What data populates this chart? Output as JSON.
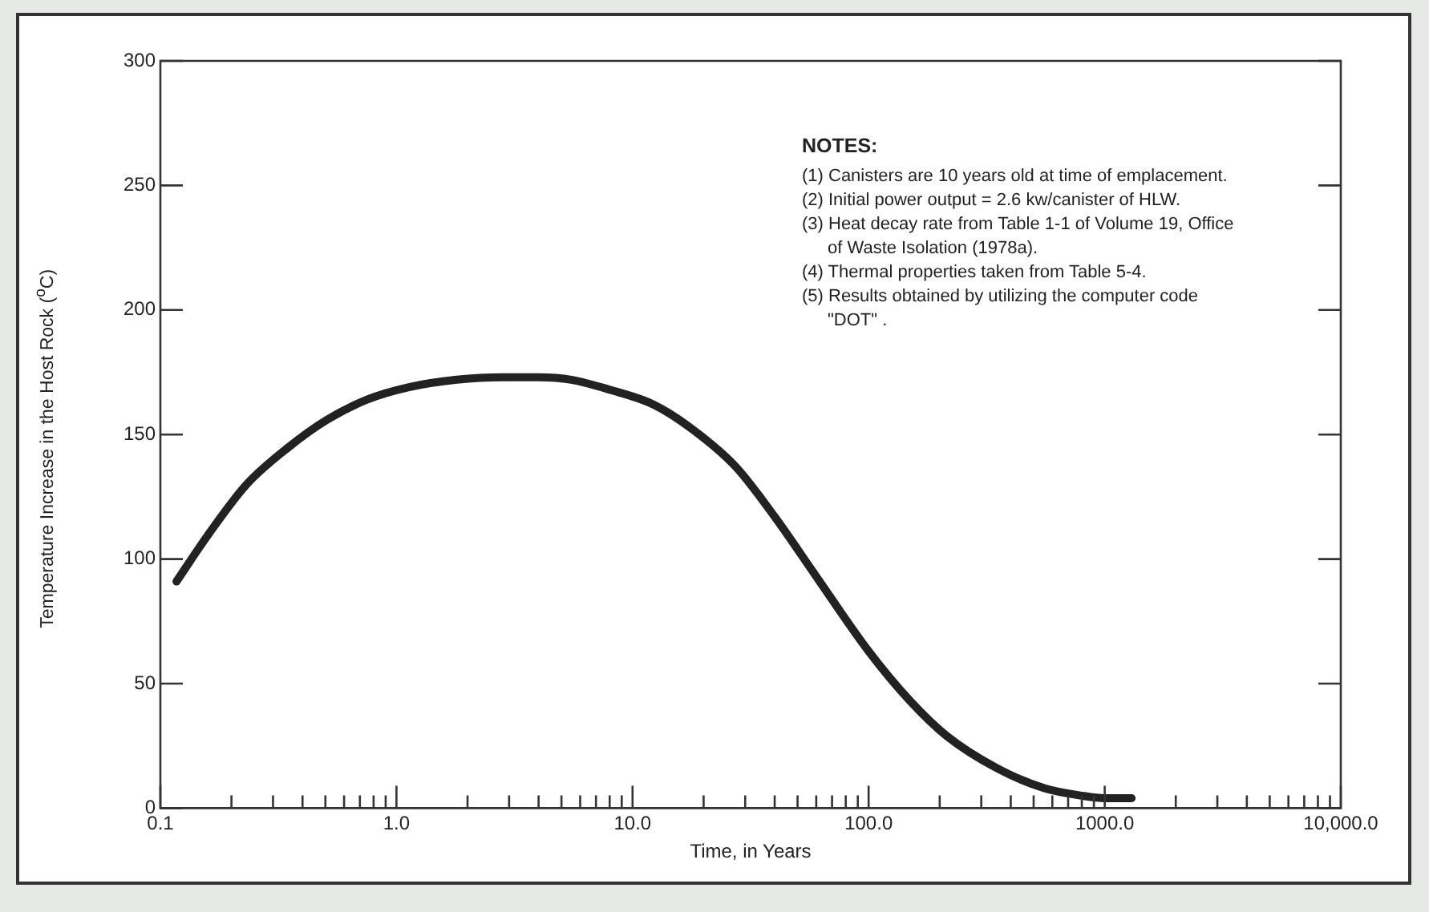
{
  "chart_data": {
    "type": "line",
    "xlabel": "Time, in Years",
    "ylabel": "Temperature Increase in the Host Rock ($^{o}$C)",
    "log": "x",
    "grid": false,
    "legend": false,
    "marker": "none",
    "line_style": "solid",
    "xlim": [
      0.1,
      10000
    ],
    "ylim": [
      0,
      300
    ],
    "xticks": [
      0.1,
      {
        "value": 0.2,
        "label": null
      },
      {
        "value": 0.3,
        "label": null
      },
      {
        "value": 0.4,
        "label": null
      },
      {
        "value": 0.5,
        "label": null
      },
      {
        "value": 0.6,
        "label": null
      },
      {
        "value": 0.7,
        "label": null
      },
      {
        "value": 0.8,
        "label": null
      },
      {
        "value": 0.9,
        "label": null
      },
      {
        "value": 1,
        "label": "1.0"
      },
      {
        "value": 2,
        "label": null
      },
      {
        "value": 3,
        "label": null
      },
      {
        "value": 4,
        "label": null
      },
      {
        "value": 5,
        "label": null
      },
      {
        "value": 6,
        "label": null
      },
      {
        "value": 7,
        "label": null
      },
      {
        "value": 8,
        "label": null
      },
      {
        "value": 9,
        "label": null
      },
      {
        "value": 10,
        "label": "10.0"
      },
      {
        "value": 20,
        "label": null
      },
      {
        "value": 30,
        "label": null
      },
      {
        "value": 40,
        "label": null
      },
      {
        "value": 50,
        "label": null
      },
      {
        "value": 60,
        "label": null
      },
      {
        "value": 70,
        "label": null
      },
      {
        "value": 80,
        "label": null
      },
      {
        "value": 90,
        "label": null
      },
      {
        "value": 100,
        "label": "100.0"
      },
      {
        "value": 200,
        "label": null
      },
      {
        "value": 300,
        "label": null
      },
      {
        "value": 400,
        "label": null
      },
      {
        "value": 500,
        "label": null
      },
      {
        "value": 600,
        "label": null
      },
      {
        "value": 700,
        "label": null
      },
      {
        "value": 800,
        "label": null
      },
      {
        "value": 900,
        "label": null
      },
      {
        "value": 1000,
        "label": "1000.0"
      },
      {
        "value": 2000,
        "label": null
      },
      {
        "value": 3000,
        "label": null
      },
      {
        "value": 4000,
        "label": null
      },
      {
        "value": 5000,
        "label": null
      },
      {
        "value": 6000,
        "label": null
      },
      {
        "value": 7000,
        "label": null
      },
      {
        "value": 8000,
        "label": null
      },
      {
        "value": 9000,
        "label": null
      },
      {
        "value": 10000,
        "label": "10,000.0"
      }
    ],
    "yticks": [
      0,
      50,
      100,
      150,
      200,
      250,
      300
    ],
    "series": [
      {
        "color": "#222222",
        "x": [
          0.117,
          0.16,
          0.232,
          0.35,
          0.51,
          0.75,
          1.13,
          1.8,
          2.8,
          4.0,
          5.5,
          8,
          12.3,
          18,
          27.4,
          40,
          60,
          100,
          150,
          214,
          350,
          555,
          800,
          1000,
          1300
        ],
        "values": [
          91,
          110,
          130,
          145,
          156,
          164,
          169,
          172,
          173,
          173,
          172,
          168,
          162,
          152,
          137,
          117,
          93,
          63,
          43,
          29,
          16,
          8,
          5,
          4,
          4
        ]
      }
    ],
    "annotations": [
      "NOTES:",
      "(1) Canisters are 10 years old at time of emplacement.",
      "(2) Initial power output = 2.6 kw/canister of HLW.",
      "(3) Heat decay rate from Table 1-1 of Volume 19, Office of Waste Isolation (1978a).",
      "(4) Thermal properties taken from Table 5-4.",
      "(5) Results obtained by utilizing the computer code \"DOT\" ."
    ]
  }
}
